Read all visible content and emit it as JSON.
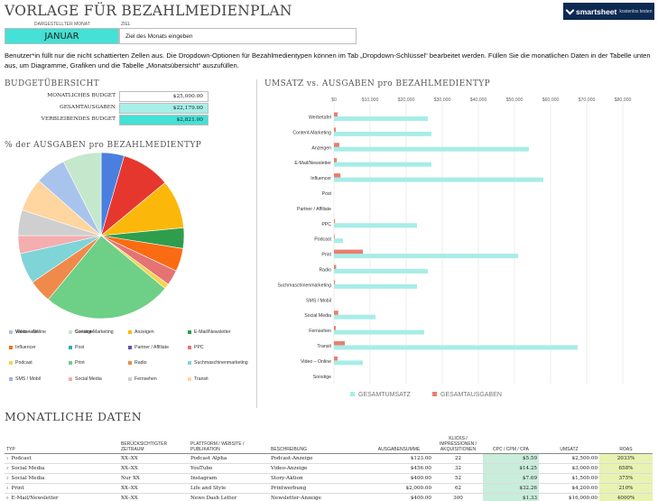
{
  "header": {
    "title": "VORLAGE FÜR BEZAHLMEDIENPLAN",
    "logo_brand": "smartsheet",
    "logo_sub": "kostenlos testen",
    "month_label": "DARGESTELLTER MONAT",
    "month_value": "JANUAR",
    "goal_label": "ZIEL",
    "goal_value": "Ziel des Monats eingeben",
    "instructions": "Benutzer*in füllt nur die nicht schattierten Zellen aus.  Die Dropdown-Optionen für Bezahlmedientypen können im Tab „Dropdown-Schlüssel“ bearbeitet werden. Füllen Sie die monatlichen Daten in der Tabelle unten aus, um Diagramme, Grafiken und die Tabelle „Monatsübersicht“ auszufüllen."
  },
  "budget": {
    "heading": "BUDGETÜBERSICHT",
    "rows": [
      {
        "label": "MONATLICHES BUDGET",
        "value": "$25,000.00",
        "color": "#ffffff"
      },
      {
        "label": "GESAMTAUSGABEN",
        "value": "$22,179.00",
        "color": "#a8efe9"
      },
      {
        "label": "VERBLEIBENDES BUDGET",
        "value": "$2,821.00",
        "color": "#45e0d6"
      }
    ]
  },
  "pie_heading": "% der AUSGABEN pro BEZAHLMEDIENTYP",
  "bar_heading": "UMSATZ vs. AUSGABEN pro BEZAHLMEDIENTYP",
  "chart_data": [
    {
      "type": "pie",
      "title": "% der AUSGABEN pro BEZAHLMEDIENTYP",
      "categories": [
        "Werbetafel",
        "Content-Marketing",
        "Anzeigen",
        "E-Mail/Newsletter",
        "Influencer",
        "Post",
        "Partner / Affiliate",
        "PPC",
        "Podcast",
        "Print",
        "Radio",
        "Suchmaschinenmarketing",
        "SMS / Mobil",
        "Social Media",
        "Fernsehen",
        "Transit",
        "Video – Online",
        "Sonstige"
      ],
      "values": [
        4.5,
        9.5,
        9.5,
        4.0,
        4.5,
        0,
        0,
        3.0,
        1.0,
        25.0,
        4.5,
        6.0,
        0,
        3.5,
        5.0,
        6.5,
        6.0,
        7.5
      ],
      "colors": [
        "#4a7fe0",
        "#e6372e",
        "#fbb80b",
        "#2e9e4c",
        "#fb6b12",
        "#32a9c1",
        "#6a4fae",
        "#e57373",
        "#f6d44b",
        "#6ecf86",
        "#f08a4b",
        "#7fd4d8",
        "#a3b0ef",
        "#f4aeb0",
        "#cfcfcf",
        "#ffd5a0",
        "#a9c4ec",
        "#c5e8cc"
      ],
      "legend_position": "bottom"
    },
    {
      "type": "bar",
      "orientation": "horizontal",
      "title": "UMSATZ vs. AUSGABEN pro BEZAHLMEDIENTYP",
      "categories": [
        "Werbetafel",
        "Content-Marketing",
        "Anzeigen",
        "E-Mail/Newsletter",
        "Influencer",
        "Post",
        "Partner / Affiliate",
        "PPC",
        "Podcast",
        "Print",
        "Radio",
        "Suchmaschinenmarketing",
        "SMS / Mobil",
        "Social Media",
        "Fernsehen",
        "Transit",
        "Video – Online",
        "Sonstige"
      ],
      "x_ticks": [
        "$0",
        "$10,000",
        "$20,000",
        "$30,000",
        "$40,000",
        "$50,000",
        "$60,000",
        "$70,000",
        "$80,000"
      ],
      "xlim": [
        0,
        80000
      ],
      "series": [
        {
          "name": "GESAMTAUSGABEN",
          "color": "#e8806f",
          "values": [
            1000,
            500,
            1500,
            800,
            1800,
            0,
            0,
            300,
            200,
            8000,
            600,
            300,
            0,
            1200,
            500,
            3000,
            1000,
            0
          ]
        },
        {
          "name": "GESAMTUMSATZ",
          "color": "#a8ede7",
          "values": [
            26000,
            27000,
            54000,
            27000,
            58000,
            0,
            0,
            23000,
            2500,
            51000,
            26000,
            23000,
            0,
            11500,
            25000,
            67500,
            8000,
            0
          ]
        }
      ],
      "legend_position": "bottom"
    }
  ],
  "monthly": {
    "heading": "MONATLICHE DATEN",
    "columns": [
      "TYP",
      "BERÜCKSICHTIGTER ZEITRAUM",
      "PLATTFORM / WEBSITE / PUBLIKATION",
      "BESCHREIBUNG",
      "AUSGABENSUMME",
      "KLICKS / IMPRESSIONEN / AKQUISITIONEN",
      "CPC / CPM / CPA",
      "UMSATZ",
      "ROAS"
    ],
    "rows": [
      {
        "n": "1",
        "typ": "Podcast",
        "zeit": "XX–XX",
        "plattform": "Podcast Alpha",
        "beschreibung": "Podcast-Anzeige",
        "ausgaben": "$123.00",
        "klicks": "22",
        "cpc": "$5.59",
        "umsatz": "$2,500.00",
        "roas": "2033%"
      },
      {
        "n": "2",
        "typ": "Social Media",
        "zeit": "XX–XX",
        "plattform": "YouTube",
        "beschreibung": "Video-Anzeige",
        "ausgaben": "$456.00",
        "klicks": "32",
        "cpc": "$14.25",
        "umsatz": "$3,000.00",
        "roas": "658%"
      },
      {
        "n": "3",
        "typ": "Social Media",
        "zeit": "Nur XX",
        "plattform": "Instagram",
        "beschreibung": "Story-Aktion",
        "ausgaben": "$400.00",
        "klicks": "52",
        "cpc": "$7.69",
        "umsatz": "$1,500.00",
        "roas": "375%"
      },
      {
        "n": "4",
        "typ": "Print",
        "zeit": "XX–XX",
        "plattform": "Life and Style",
        "beschreibung": "Printwerbung",
        "ausgaben": "$2,000.00",
        "klicks": "62",
        "cpc": "$32.26",
        "umsatz": "$4,200.00",
        "roas": "210%"
      },
      {
        "n": "5",
        "typ": "E-Mail/Newsletter",
        "zeit": "XX–XX",
        "plattform": "News Dash Letter",
        "beschreibung": "Newsletter-Anzeige",
        "ausgaben": "$400.00",
        "klicks": "300",
        "cpc": "$1.33",
        "umsatz": "$16,000.00",
        "roas": "4000%"
      }
    ]
  }
}
